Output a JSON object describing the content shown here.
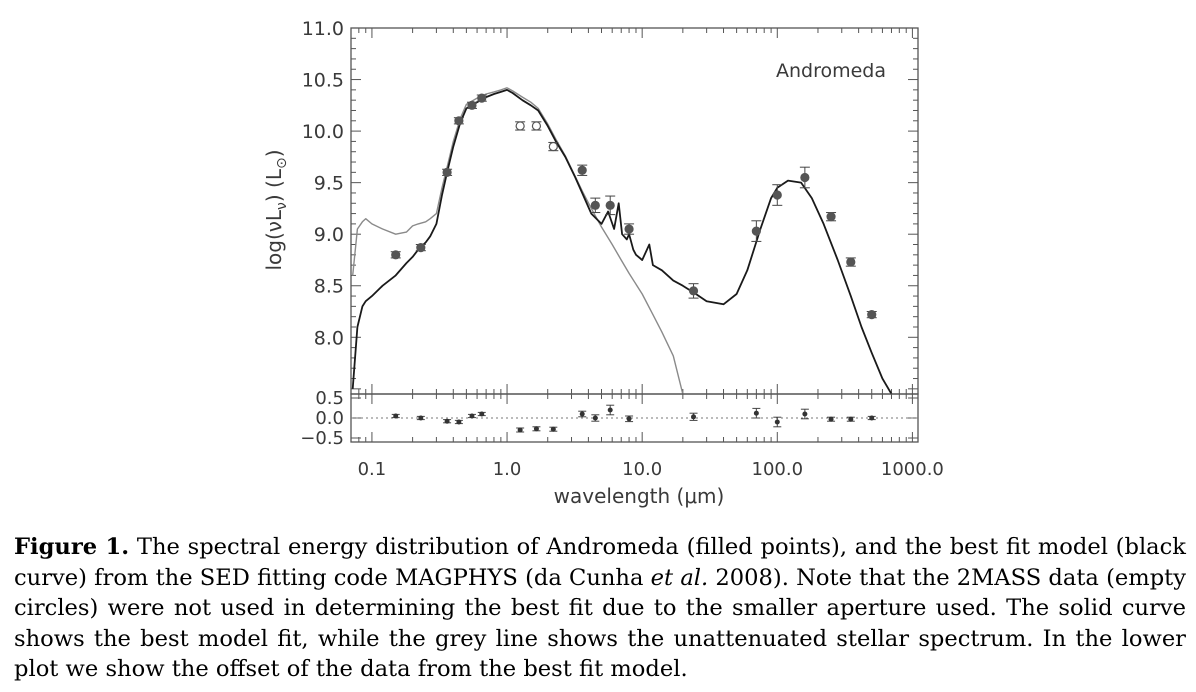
{
  "chart_data": [
    {
      "type": "line",
      "subtitle": "Andromeda",
      "xlabel": "wavelength (μm)",
      "ylabel": "log(νL_ν) (L_⊙)",
      "x_scale": "log",
      "xlim": [
        0.07,
        1100
      ],
      "ylim": [
        7.45,
        11.0
      ],
      "x_ticks": [
        0.1,
        1.0,
        10.0,
        100.0,
        1000.0
      ],
      "x_tick_labels": [
        "0.1",
        "1.0",
        "10.0",
        "100.0",
        "1000.0"
      ],
      "y_ticks": [
        8.0,
        8.5,
        9.0,
        9.5,
        10.0,
        10.5,
        11.0
      ],
      "y_tick_labels": [
        "8.0",
        "8.5",
        "9.0",
        "9.5",
        "10.0",
        "10.5",
        "11.0"
      ],
      "grid": false,
      "series": [
        {
          "role": "model",
          "color": "#1a1a1a",
          "x": [
            0.072,
            0.078,
            0.085,
            0.09,
            0.1,
            0.12,
            0.15,
            0.18,
            0.2,
            0.22,
            0.25,
            0.27,
            0.3,
            0.33,
            0.36,
            0.4,
            0.45,
            0.5,
            0.6,
            0.7,
            0.8,
            0.9,
            1.0,
            1.1,
            1.3,
            1.5,
            1.7,
            2.0,
            2.3,
            2.7,
            3.2,
            3.6,
            4.2,
            5.0,
            5.6,
            6.2,
            6.7,
            7.1,
            7.7,
            8.0,
            8.6,
            9.0,
            10.0,
            11.3,
            12.0,
            14.0,
            17.0,
            20.0,
            25.0,
            30.0,
            40.0,
            50.0,
            60.0,
            75.0,
            90.0,
            100.0,
            120.0,
            150.0,
            180.0,
            220.0,
            280.0,
            350.0,
            420.0,
            500.0,
            600.0,
            700.0
          ],
          "y": [
            7.5,
            8.1,
            8.3,
            8.35,
            8.4,
            8.5,
            8.6,
            8.72,
            8.78,
            8.85,
            8.92,
            8.98,
            9.1,
            9.38,
            9.6,
            9.85,
            10.08,
            10.22,
            10.28,
            10.33,
            10.36,
            10.38,
            10.4,
            10.37,
            10.3,
            10.25,
            10.2,
            10.05,
            9.9,
            9.75,
            9.55,
            9.4,
            9.2,
            9.1,
            9.22,
            9.05,
            9.3,
            9.0,
            8.95,
            9.0,
            8.85,
            8.8,
            8.75,
            8.9,
            8.7,
            8.65,
            8.55,
            8.5,
            8.42,
            8.35,
            8.32,
            8.42,
            8.65,
            9.05,
            9.35,
            9.45,
            9.52,
            9.5,
            9.35,
            9.1,
            8.75,
            8.4,
            8.1,
            7.85,
            7.6,
            7.45
          ]
        },
        {
          "role": "unattenuated stellar spectrum",
          "color": "#8a8a8a",
          "x": [
            0.072,
            0.078,
            0.085,
            0.09,
            0.1,
            0.12,
            0.15,
            0.18,
            0.2,
            0.22,
            0.25,
            0.27,
            0.3,
            0.33,
            0.36,
            0.4,
            0.45,
            0.5,
            0.6,
            0.7,
            0.8,
            0.9,
            1.0,
            1.1,
            1.3,
            1.5,
            1.7,
            2.0,
            2.3,
            2.7,
            3.2,
            3.6,
            4.2,
            5.0,
            6.0,
            7.0,
            8.0,
            10.0,
            12.0,
            14.0,
            17.0,
            20.0
          ],
          "y": [
            8.6,
            9.05,
            9.12,
            9.15,
            9.1,
            9.05,
            9.0,
            9.02,
            9.08,
            9.1,
            9.12,
            9.15,
            9.2,
            9.45,
            9.65,
            9.9,
            10.12,
            10.26,
            10.32,
            10.36,
            10.38,
            10.4,
            10.42,
            10.39,
            10.33,
            10.28,
            10.22,
            10.07,
            9.92,
            9.76,
            9.56,
            9.42,
            9.25,
            9.07,
            8.9,
            8.75,
            8.62,
            8.42,
            8.22,
            8.05,
            7.82,
            7.45
          ]
        }
      ],
      "points": [
        {
          "x": 0.15,
          "y": 8.8,
          "err": 0.03,
          "filled": true
        },
        {
          "x": 0.23,
          "y": 8.87,
          "err": 0.03,
          "filled": true
        },
        {
          "x": 0.36,
          "y": 9.6,
          "err": 0.03,
          "filled": true
        },
        {
          "x": 0.44,
          "y": 10.1,
          "err": 0.03,
          "filled": true
        },
        {
          "x": 0.55,
          "y": 10.25,
          "err": 0.03,
          "filled": true
        },
        {
          "x": 0.65,
          "y": 10.32,
          "err": 0.03,
          "filled": true
        },
        {
          "x": 1.25,
          "y": 10.05,
          "err": 0.04,
          "filled": false
        },
        {
          "x": 1.65,
          "y": 10.05,
          "err": 0.04,
          "filled": false
        },
        {
          "x": 2.2,
          "y": 9.85,
          "err": 0.04,
          "filled": false
        },
        {
          "x": 3.6,
          "y": 9.62,
          "err": 0.05,
          "filled": true
        },
        {
          "x": 4.5,
          "y": 9.28,
          "err": 0.07,
          "filled": true
        },
        {
          "x": 5.8,
          "y": 9.28,
          "err": 0.09,
          "filled": true
        },
        {
          "x": 8.0,
          "y": 9.05,
          "err": 0.05,
          "filled": true
        },
        {
          "x": 24.0,
          "y": 8.45,
          "err": 0.07,
          "filled": true
        },
        {
          "x": 70.0,
          "y": 9.03,
          "err": 0.1,
          "filled": true
        },
        {
          "x": 100.0,
          "y": 9.38,
          "err": 0.1,
          "filled": true
        },
        {
          "x": 160.0,
          "y": 9.55,
          "err": 0.1,
          "filled": true
        },
        {
          "x": 250.0,
          "y": 9.17,
          "err": 0.04,
          "filled": true
        },
        {
          "x": 350.0,
          "y": 8.73,
          "err": 0.04,
          "filled": true
        },
        {
          "x": 500.0,
          "y": 8.22,
          "err": 0.03,
          "filled": true
        }
      ]
    },
    {
      "type": "scatter",
      "role": "residuals",
      "x_scale": "log",
      "xlim": [
        0.07,
        1100
      ],
      "ylim": [
        -0.6,
        0.6
      ],
      "y_ticks": [
        -0.5,
        0.0,
        0.5
      ],
      "y_tick_labels": [
        "−0.5",
        "0.0",
        "0.5"
      ],
      "zero_line": true,
      "points": [
        {
          "x": 0.15,
          "y": 0.05,
          "err": 0.04
        },
        {
          "x": 0.23,
          "y": 0.0,
          "err": 0.04
        },
        {
          "x": 0.36,
          "y": -0.08,
          "err": 0.04
        },
        {
          "x": 0.44,
          "y": -0.1,
          "err": 0.04
        },
        {
          "x": 0.55,
          "y": 0.05,
          "err": 0.04
        },
        {
          "x": 0.65,
          "y": 0.1,
          "err": 0.04
        },
        {
          "x": 1.25,
          "y": -0.3,
          "err": 0.05
        },
        {
          "x": 1.65,
          "y": -0.27,
          "err": 0.05
        },
        {
          "x": 2.2,
          "y": -0.28,
          "err": 0.05
        },
        {
          "x": 3.6,
          "y": 0.1,
          "err": 0.07
        },
        {
          "x": 4.5,
          "y": 0.0,
          "err": 0.08
        },
        {
          "x": 5.8,
          "y": 0.2,
          "err": 0.12
        },
        {
          "x": 8.0,
          "y": -0.02,
          "err": 0.07
        },
        {
          "x": 24.0,
          "y": 0.03,
          "err": 0.09
        },
        {
          "x": 70.0,
          "y": 0.12,
          "err": 0.12
        },
        {
          "x": 100.0,
          "y": -0.1,
          "err": 0.12
        },
        {
          "x": 160.0,
          "y": 0.1,
          "err": 0.12
        },
        {
          "x": 250.0,
          "y": -0.03,
          "err": 0.05
        },
        {
          "x": 350.0,
          "y": -0.03,
          "err": 0.05
        },
        {
          "x": 500.0,
          "y": 0.0,
          "err": 0.04
        }
      ]
    }
  ],
  "caption": {
    "label": "Figure 1.",
    "part1": " The spectral energy distribution of Andromeda (filled points), and the best fit model (black curve) from the SED fitting code MAGPHYS (da Cunha ",
    "etal": "et al.",
    "part2": " 2008). Note that the 2MASS data (empty circles) were not used in determining the best fit due to the smaller aperture used. The solid curve shows the best model fit, while the grey line shows the unattenuated stellar spectrum. In the lower plot we show the offset of the data from the best fit model."
  }
}
